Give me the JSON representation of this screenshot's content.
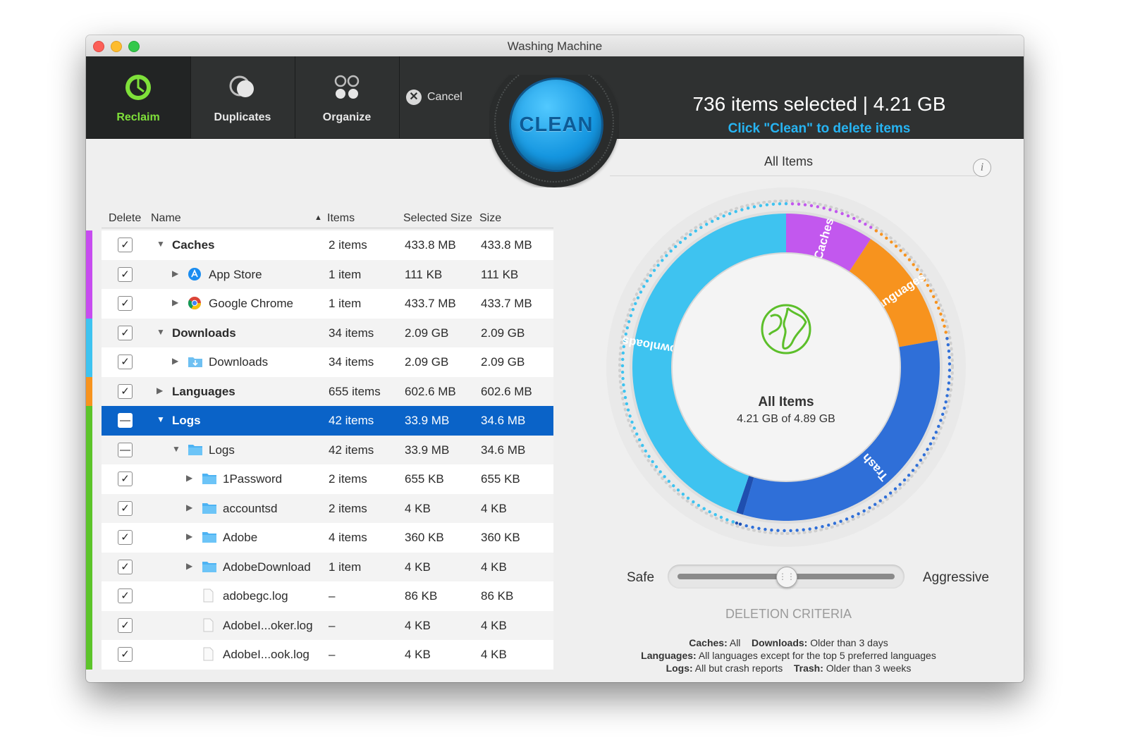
{
  "window": {
    "title": "Washing Machine"
  },
  "toolbar": {
    "tabs": [
      {
        "label": "Reclaim",
        "active": true,
        "icon": "pie-chart-icon"
      },
      {
        "label": "Duplicates",
        "active": false,
        "icon": "duplicates-icon"
      },
      {
        "label": "Organize",
        "active": false,
        "icon": "organize-icon"
      }
    ],
    "cancel_label": "Cancel",
    "clean_label": "CLEAN",
    "summary": "736 items selected | 4.21 GB",
    "hint": "Click \"Clean\" to delete items"
  },
  "table": {
    "headers": {
      "delete": "Delete",
      "name": "Name",
      "items": "Items",
      "selected_size": "Selected Size",
      "size": "Size"
    },
    "sort_column": "Items",
    "rows": [
      {
        "name": "Caches",
        "items": "2 items",
        "selected": "433.8 MB",
        "size": "433.8 MB",
        "checked": "checked",
        "level": 0,
        "expanded": true,
        "bold": true,
        "color": "#c74cf0",
        "icon": ""
      },
      {
        "name": "App Store",
        "items": "1 item",
        "selected": "111 KB",
        "size": "111 KB",
        "checked": "checked",
        "level": 1,
        "expanded": false,
        "bold": false,
        "color": "#c74cf0",
        "icon": "app-store-icon"
      },
      {
        "name": "Google Chrome",
        "items": "1 item",
        "selected": "433.7 MB",
        "size": "433.7 MB",
        "checked": "checked",
        "level": 1,
        "expanded": false,
        "bold": false,
        "color": "#c74cf0",
        "icon": "chrome-icon"
      },
      {
        "name": "Downloads",
        "items": "34 items",
        "selected": "2.09 GB",
        "size": "2.09 GB",
        "checked": "checked",
        "level": 0,
        "expanded": true,
        "bold": true,
        "color": "#3ec3f0",
        "icon": ""
      },
      {
        "name": "Downloads",
        "items": "34 items",
        "selected": "2.09 GB",
        "size": "2.09 GB",
        "checked": "checked",
        "level": 1,
        "expanded": false,
        "bold": false,
        "color": "#3ec3f0",
        "icon": "downloads-folder-icon"
      },
      {
        "name": "Languages",
        "items": "655 items",
        "selected": "602.6 MB",
        "size": "602.6 MB",
        "checked": "checked",
        "level": 0,
        "expanded": false,
        "bold": true,
        "color": "#f7931e",
        "icon": ""
      },
      {
        "name": "Logs",
        "items": "42 items",
        "selected": "33.9 MB",
        "size": "34.6 MB",
        "checked": "mixed",
        "level": 0,
        "expanded": true,
        "bold": true,
        "color": "#5cc42a",
        "icon": "",
        "selected_row": true
      },
      {
        "name": "Logs",
        "items": "42 items",
        "selected": "33.9 MB",
        "size": "34.6 MB",
        "checked": "mixed",
        "level": 1,
        "expanded": true,
        "bold": false,
        "color": "#5cc42a",
        "icon": "folder-icon"
      },
      {
        "name": "1Password",
        "items": "2 items",
        "selected": "655 KB",
        "size": "655 KB",
        "checked": "checked",
        "level": 2,
        "expanded": false,
        "bold": false,
        "color": "#5cc42a",
        "icon": "folder-icon"
      },
      {
        "name": "accountsd",
        "items": "2 items",
        "selected": "4 KB",
        "size": "4 KB",
        "checked": "checked",
        "level": 2,
        "expanded": false,
        "bold": false,
        "color": "#5cc42a",
        "icon": "folder-icon"
      },
      {
        "name": "Adobe",
        "items": "4 items",
        "selected": "360 KB",
        "size": "360 KB",
        "checked": "checked",
        "level": 2,
        "expanded": false,
        "bold": false,
        "color": "#5cc42a",
        "icon": "folder-icon"
      },
      {
        "name": "AdobeDownload",
        "items": "1 item",
        "selected": "4 KB",
        "size": "4 KB",
        "checked": "checked",
        "level": 2,
        "expanded": false,
        "bold": false,
        "color": "#5cc42a",
        "icon": "folder-icon"
      },
      {
        "name": "adobegc.log",
        "items": "–",
        "selected": "86 KB",
        "size": "86 KB",
        "checked": "checked",
        "level": 2,
        "expanded": null,
        "bold": false,
        "color": "#5cc42a",
        "icon": "file-icon"
      },
      {
        "name": "AdobeI...oker.log",
        "items": "–",
        "selected": "4 KB",
        "size": "4 KB",
        "checked": "checked",
        "level": 2,
        "expanded": null,
        "bold": false,
        "color": "#5cc42a",
        "icon": "file-icon"
      },
      {
        "name": "AdobeI...ook.log",
        "items": "–",
        "selected": "4 KB",
        "size": "4 KB",
        "checked": "checked",
        "level": 2,
        "expanded": null,
        "bold": false,
        "color": "#5cc42a",
        "icon": "file-icon"
      }
    ]
  },
  "panel": {
    "title": "All Items",
    "center_title": "All Items",
    "center_sub": "4.21 GB of 4.89 GB",
    "segments": [
      {
        "label": "Caches",
        "value": 433.8,
        "color": "#c258ee"
      },
      {
        "label": "Languages",
        "value": 602.6,
        "color": "#f7931e"
      },
      {
        "label": "Trash",
        "value": 1510,
        "color": "#2f6fd8"
      },
      {
        "label": "",
        "value": 34,
        "color": "#1f4fb0"
      },
      {
        "label": "Downloads",
        "value": 2090,
        "color": "#3ec3f0"
      }
    ],
    "slider": {
      "left_label": "Safe",
      "right_label": "Aggressive",
      "value": 0.5
    },
    "criteria_title": "DELETION CRITERIA",
    "criteria": [
      [
        {
          "k": "Caches:",
          "v": " All"
        },
        {
          "k": "Downloads:",
          "v": " Older than 3 days"
        }
      ],
      [
        {
          "k": "Languages:",
          "v": " All languages except for the top 5 preferred languages"
        }
      ],
      [
        {
          "k": "Logs:",
          "v": " All but crash reports"
        },
        {
          "k": "Trash:",
          "v": " Older than 3 weeks"
        }
      ]
    ]
  }
}
